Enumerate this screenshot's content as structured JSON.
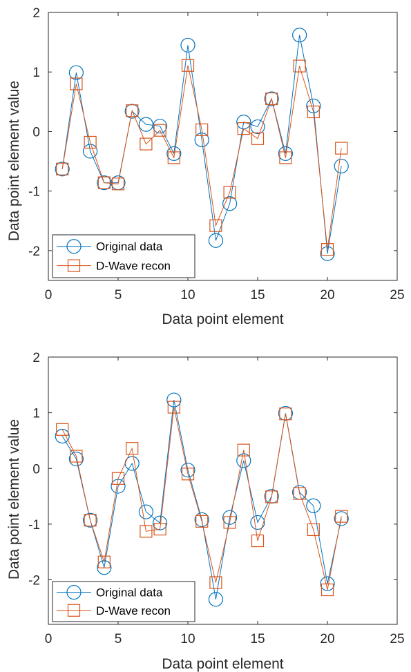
{
  "colors": {
    "original": "#0072BD",
    "recon": "#D95319",
    "axis": "#262626",
    "background": "#ffffff"
  },
  "chart_data": [
    {
      "type": "line",
      "xlabel": "Data point element",
      "ylabel": "Data point element value",
      "xlim": [
        0,
        25
      ],
      "ylim": [
        -2.5,
        2
      ],
      "xticks": [
        "0",
        "5",
        "10",
        "15",
        "20",
        "25"
      ],
      "yticks": [
        "2",
        "1",
        "0",
        "-1",
        "-2"
      ],
      "grid": false,
      "legend_position": "bottom-left",
      "x": [
        1,
        2,
        3,
        4,
        5,
        6,
        7,
        8,
        9,
        10,
        11,
        12,
        13,
        14,
        15,
        16,
        17,
        18,
        19,
        20,
        21
      ],
      "series": [
        {
          "name": "Original data",
          "marker": "circle",
          "color": "#0072BD",
          "values": [
            -0.63,
            0.99,
            -0.33,
            -0.86,
            -0.86,
            0.34,
            0.12,
            0.09,
            -0.37,
            1.45,
            -0.14,
            -1.83,
            -1.21,
            0.16,
            0.08,
            0.55,
            -0.37,
            1.62,
            0.43,
            -2.05,
            -0.58
          ]
        },
        {
          "name": "D-Wave recon",
          "marker": "square",
          "color": "#D95319",
          "values": [
            -0.63,
            0.8,
            -0.18,
            -0.86,
            -0.88,
            0.35,
            -0.21,
            0.02,
            -0.44,
            1.11,
            0.03,
            -1.58,
            -1.02,
            0.05,
            -0.12,
            0.55,
            -0.44,
            1.1,
            0.33,
            -1.98,
            -0.28
          ]
        }
      ]
    },
    {
      "type": "line",
      "xlabel": "Data point element",
      "ylabel": "Data point element value",
      "xlim": [
        0,
        25
      ],
      "ylim": [
        -2.8,
        2
      ],
      "xticks": [
        "0",
        "5",
        "10",
        "15",
        "20",
        "25"
      ],
      "yticks": [
        "2",
        "1",
        "0",
        "-1",
        "-2"
      ],
      "grid": false,
      "legend_position": "bottom-left",
      "x": [
        1,
        2,
        3,
        4,
        5,
        6,
        7,
        8,
        9,
        10,
        11,
        12,
        13,
        14,
        15,
        16,
        17,
        18,
        19,
        20,
        21
      ],
      "series": [
        {
          "name": "Original data",
          "marker": "circle",
          "color": "#0072BD",
          "values": [
            0.58,
            0.17,
            -0.93,
            -1.78,
            -0.32,
            0.09,
            -0.78,
            -0.98,
            1.23,
            -0.03,
            -0.92,
            -2.35,
            -0.88,
            0.14,
            -0.97,
            -0.5,
            0.99,
            -0.43,
            -0.67,
            -2.07,
            -0.9
          ]
        },
        {
          "name": "D-Wave recon",
          "marker": "square",
          "color": "#D95319",
          "values": [
            0.7,
            0.22,
            -0.93,
            -1.68,
            -0.18,
            0.36,
            -1.13,
            -1.09,
            1.1,
            -0.1,
            -0.95,
            -2.05,
            -0.97,
            0.33,
            -1.3,
            -0.51,
            0.98,
            -0.45,
            -1.1,
            -2.18,
            -0.86
          ]
        }
      ]
    }
  ]
}
